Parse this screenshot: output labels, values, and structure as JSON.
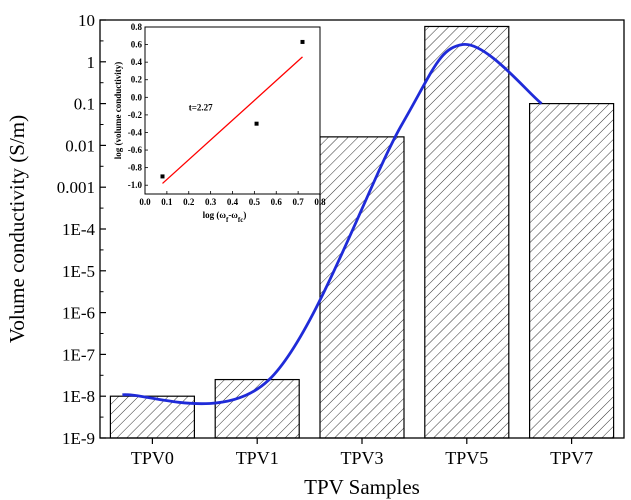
{
  "chart_data": [
    {
      "type": "bar",
      "title": "",
      "xlabel": "TPV Samples",
      "ylabel": "Volume conductivity (S/m)",
      "yscale": "log",
      "ylim": [
        1e-09,
        10
      ],
      "y_tick_labels": [
        "1E-9",
        "1E-8",
        "1E-7",
        "1E-6",
        "1E-5",
        "1E-4",
        "0.001",
        "0.01",
        "0.1",
        "1",
        "10"
      ],
      "categories": [
        "TPV0",
        "TPV1",
        "TPV3",
        "TPV5",
        "TPV7"
      ],
      "values": [
        1e-08,
        2.5e-08,
        0.016,
        7,
        0.1
      ],
      "bar_fill": "hatched",
      "trend_line_color": "#1f2bd8",
      "grid": false
    },
    {
      "type": "scatter",
      "inset": true,
      "xlabel": "log (ω_f-ω_fc)",
      "ylabel": "log (volume conductivity)",
      "xlim": [
        0.0,
        0.8
      ],
      "ylim": [
        -1.1,
        0.8
      ],
      "x_tick_labels": [
        "0.0",
        "0.1",
        "0.2",
        "0.3",
        "0.4",
        "0.5",
        "0.6",
        "0.7",
        "0.8"
      ],
      "y_tick_labels": [
        "-1.0",
        "-0.8",
        "-0.6",
        "-0.4",
        "-0.2",
        "0.0",
        "0.2",
        "0.4",
        "0.6",
        "0.8"
      ],
      "points": [
        {
          "x": 0.08,
          "y": -0.9
        },
        {
          "x": 0.51,
          "y": -0.3
        },
        {
          "x": 0.72,
          "y": 0.63
        }
      ],
      "fit_line": {
        "x": [
          0.08,
          0.72
        ],
        "y": [
          -0.98,
          0.46
        ],
        "color": "#ff0000"
      },
      "annotation": "t=2.27"
    }
  ]
}
